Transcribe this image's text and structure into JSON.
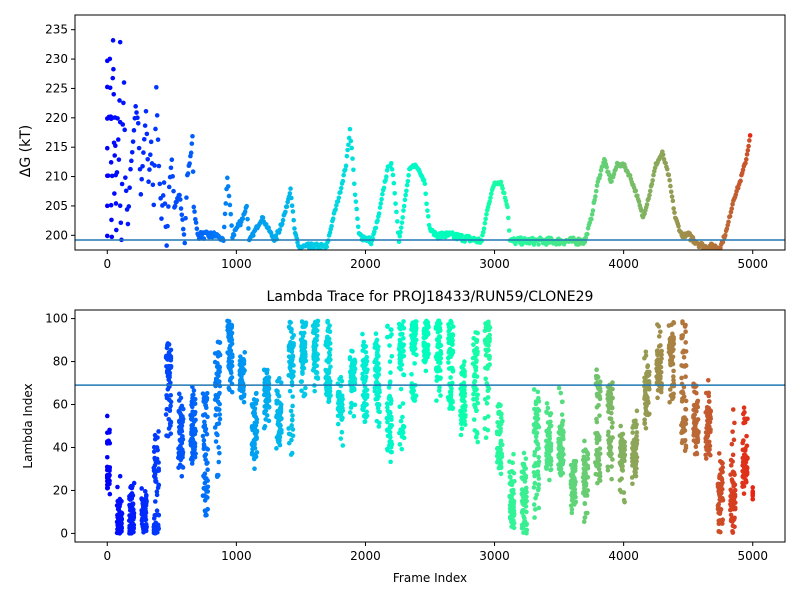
{
  "chart_data": [
    {
      "type": "scatter",
      "title": "",
      "xlabel": "",
      "ylabel": "ΔG (kT)",
      "xlim": [
        -250,
        5250
      ],
      "ylim": [
        197.5,
        237.5
      ],
      "xticks": [
        0,
        1000,
        2000,
        3000,
        4000,
        5000
      ],
      "yticks": [
        200,
        205,
        210,
        215,
        220,
        225,
        230,
        235
      ],
      "colormap": "rainbow",
      "hline": {
        "y": 199.2,
        "color": "#1f77b4"
      },
      "series_points": [
        [
          0,
          230
        ],
        [
          0,
          220
        ],
        [
          0,
          210
        ],
        [
          0,
          200
        ],
        [
          20,
          230
        ],
        [
          25,
          220
        ],
        [
          30,
          220
        ],
        [
          30,
          205
        ],
        [
          35,
          200
        ],
        [
          40,
          220
        ],
        [
          45,
          233
        ],
        [
          50,
          224
        ],
        [
          55,
          207
        ],
        [
          60,
          220
        ],
        [
          65,
          210
        ],
        [
          70,
          201
        ],
        [
          80,
          220
        ],
        [
          90,
          213
        ],
        [
          100,
          233
        ],
        [
          100,
          205
        ],
        [
          110,
          199
        ],
        [
          120,
          219
        ],
        [
          130,
          226
        ],
        [
          140,
          210
        ],
        [
          160,
          202
        ],
        [
          180,
          211
        ],
        [
          200,
          216
        ],
        [
          220,
          222
        ],
        [
          240,
          219
        ],
        [
          260,
          207
        ],
        [
          280,
          214
        ],
        [
          300,
          221
        ],
        [
          320,
          209
        ],
        [
          340,
          216
        ],
        [
          360,
          205
        ],
        [
          380,
          225
        ],
        [
          400,
          212
        ],
        [
          420,
          203
        ],
        [
          440,
          209
        ],
        [
          460,
          198
        ],
        [
          480,
          208
        ],
        [
          500,
          213
        ],
        [
          520,
          205
        ],
        [
          560,
          207
        ],
        [
          600,
          199
        ],
        [
          620,
          210
        ],
        [
          650,
          214
        ],
        [
          660,
          217
        ],
        [
          670,
          205
        ],
        [
          700,
          200
        ],
        [
          850,
          200
        ],
        [
          900,
          199
        ],
        [
          930,
          210
        ],
        [
          950,
          205
        ],
        [
          970,
          200
        ],
        [
          1050,
          203
        ],
        [
          1080,
          205
        ],
        [
          1100,
          199
        ],
        [
          1150,
          201
        ],
        [
          1200,
          203
        ],
        [
          1250,
          201
        ],
        [
          1300,
          199
        ],
        [
          1380,
          204
        ],
        [
          1420,
          208
        ],
        [
          1450,
          201
        ],
        [
          1480,
          198
        ],
        [
          1700,
          198
        ],
        [
          1750,
          203
        ],
        [
          1800,
          207
        ],
        [
          1850,
          212
        ],
        [
          1880,
          218
        ],
        [
          1900,
          213
        ],
        [
          1920,
          207
        ],
        [
          1950,
          200
        ],
        [
          2050,
          199
        ],
        [
          2100,
          203
        ],
        [
          2150,
          209
        ],
        [
          2180,
          212
        ],
        [
          2200,
          212
        ],
        [
          2220,
          209
        ],
        [
          2240,
          204
        ],
        [
          2260,
          199
        ],
        [
          2300,
          205
        ],
        [
          2340,
          211
        ],
        [
          2380,
          212
        ],
        [
          2420,
          211
        ],
        [
          2460,
          209
        ],
        [
          2480,
          204
        ],
        [
          2500,
          201
        ],
        [
          2550,
          200
        ],
        [
          2650,
          200
        ],
        [
          2900,
          199
        ],
        [
          2950,
          205
        ],
        [
          3000,
          209
        ],
        [
          3050,
          209
        ],
        [
          3100,
          205
        ],
        [
          3120,
          199
        ],
        [
          3700,
          199
        ],
        [
          3750,
          203
        ],
        [
          3800,
          209
        ],
        [
          3850,
          213
        ],
        [
          3900,
          209
        ],
        [
          3950,
          212
        ],
        [
          4000,
          212
        ],
        [
          4050,
          210
        ],
        [
          4100,
          207
        ],
        [
          4150,
          203
        ],
        [
          4200,
          207
        ],
        [
          4250,
          212
        ],
        [
          4300,
          214
        ],
        [
          4350,
          210
        ],
        [
          4400,
          203
        ],
        [
          4450,
          200
        ],
        [
          4500,
          200
        ],
        [
          4620,
          198
        ],
        [
          4750,
          198
        ],
        [
          4800,
          201
        ],
        [
          4850,
          206
        ],
        [
          4900,
          209
        ],
        [
          4950,
          213
        ],
        [
          4980,
          217
        ]
      ]
    },
    {
      "type": "scatter",
      "title": "Lambda Trace for PROJ18433/RUN59/CLONE29",
      "xlabel": "Frame Index",
      "ylabel": "Lambda Index",
      "xlim": [
        -250,
        5250
      ],
      "ylim": [
        -4,
        104
      ],
      "xticks": [
        0,
        1000,
        2000,
        3000,
        4000,
        5000
      ],
      "yticks": [
        0,
        20,
        40,
        60,
        80,
        100
      ],
      "colormap": "rainbow",
      "hline": {
        "y": 69,
        "color": "#1f77b4"
      },
      "n_frames": 5000,
      "point_count": 3200
    }
  ]
}
